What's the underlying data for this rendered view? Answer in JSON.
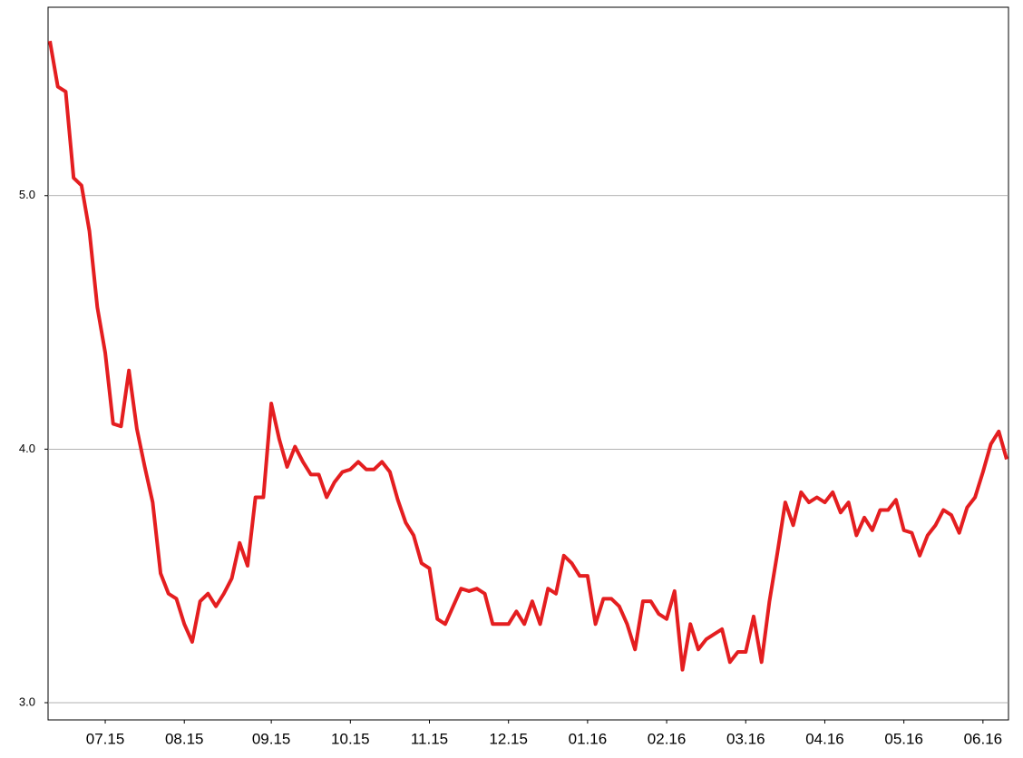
{
  "chart_data": {
    "type": "line",
    "categories": [
      null,
      null,
      null,
      null,
      null,
      null,
      null,
      "07.15",
      null,
      null,
      null,
      null,
      null,
      null,
      null,
      null,
      null,
      "08.15",
      null,
      null,
      null,
      null,
      null,
      null,
      null,
      null,
      null,
      null,
      "09.15",
      null,
      null,
      null,
      null,
      null,
      null,
      null,
      null,
      null,
      "10.15",
      null,
      null,
      null,
      null,
      null,
      null,
      null,
      null,
      null,
      "11.15",
      null,
      null,
      null,
      null,
      null,
      null,
      null,
      null,
      null,
      "12.15",
      null,
      null,
      null,
      null,
      null,
      null,
      null,
      null,
      null,
      "01.16",
      null,
      null,
      null,
      null,
      null,
      null,
      null,
      null,
      null,
      "02.16",
      null,
      null,
      null,
      null,
      null,
      null,
      null,
      null,
      null,
      "03.16",
      null,
      null,
      null,
      null,
      null,
      null,
      null,
      null,
      null,
      "04.16",
      null,
      null,
      null,
      null,
      null,
      null,
      null,
      null,
      null,
      "05.16",
      null,
      null,
      null,
      null,
      null,
      null,
      null,
      null,
      null,
      "06.16",
      null,
      null,
      null
    ],
    "values": [
      5.61,
      5.43,
      5.41,
      5.07,
      5.04,
      4.86,
      4.56,
      4.38,
      4.1,
      4.09,
      4.31,
      4.08,
      3.93,
      3.79,
      3.51,
      3.43,
      3.41,
      3.31,
      3.24,
      3.4,
      3.43,
      3.38,
      3.43,
      3.49,
      3.63,
      3.54,
      3.81,
      3.81,
      4.18,
      4.04,
      3.93,
      4.01,
      3.95,
      3.9,
      3.9,
      3.81,
      3.87,
      3.91,
      3.92,
      3.95,
      3.92,
      3.92,
      3.95,
      3.91,
      3.8,
      3.71,
      3.66,
      3.55,
      3.53,
      3.33,
      3.31,
      3.38,
      3.45,
      3.44,
      3.45,
      3.43,
      3.31,
      3.31,
      3.31,
      3.36,
      3.31,
      3.4,
      3.31,
      3.45,
      3.43,
      3.58,
      3.55,
      3.5,
      3.5,
      3.31,
      3.41,
      3.41,
      3.38,
      3.31,
      3.21,
      3.4,
      3.4,
      3.35,
      3.33,
      3.44,
      3.13,
      3.31,
      3.21,
      3.25,
      3.27,
      3.29,
      3.16,
      3.2,
      3.2,
      3.34,
      3.16,
      3.4,
      3.59,
      3.79,
      3.7,
      3.83,
      3.79,
      3.81,
      3.79,
      3.83,
      3.75,
      3.79,
      3.66,
      3.73,
      3.68,
      3.76,
      3.76,
      3.8,
      3.68,
      3.67,
      3.58,
      3.66,
      3.7,
      3.76,
      3.74,
      3.67,
      3.77,
      3.81,
      3.91,
      4.02,
      4.07,
      3.96
    ],
    "color": "#e41e20",
    "ylim": [
      2.932,
      5.743
    ],
    "yticks": [
      {
        "value": 3,
        "label": "3.0"
      },
      {
        "value": 4,
        "label": "4.0"
      },
      {
        "value": 5,
        "label": "5.0"
      }
    ],
    "grid": true
  }
}
